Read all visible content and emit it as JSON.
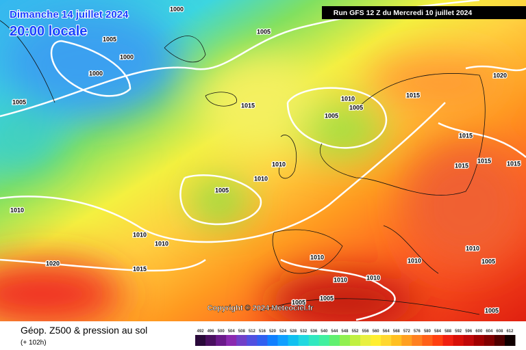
{
  "header": {
    "date": "Dimanche 14 juillet 2024",
    "time": "20:00 locale"
  },
  "run": "Run GFS 12 Z du Mercredi 10 juillet 2024",
  "copyright": "Copyright © 2024 Meteociel.fr",
  "legend": {
    "title": "Géop. Z500 & pression au sol",
    "lead_time": "(+ 102h)",
    "scale": [
      "492",
      "496",
      "500",
      "504",
      "508",
      "512",
      "516",
      "520",
      "524",
      "528",
      "532",
      "536",
      "540",
      "544",
      "548",
      "552",
      "556",
      "560",
      "564",
      "568",
      "572",
      "576",
      "580",
      "584",
      "588",
      "592",
      "596",
      "600",
      "604",
      "608",
      "612"
    ]
  },
  "isobar_labels": [
    "1000",
    "1005",
    "1000",
    "1000",
    "1005",
    "1005",
    "1015",
    "1010",
    "1005",
    "1005",
    "1015",
    "1020",
    "1015",
    "1015",
    "1015",
    "1015",
    "1010",
    "1010",
    "1005",
    "1010",
    "1010",
    "1010",
    "1010",
    "1010",
    "1010",
    "1005",
    "1020",
    "1015",
    "1010",
    "1010",
    "1005",
    "1005",
    "1005"
  ]
}
